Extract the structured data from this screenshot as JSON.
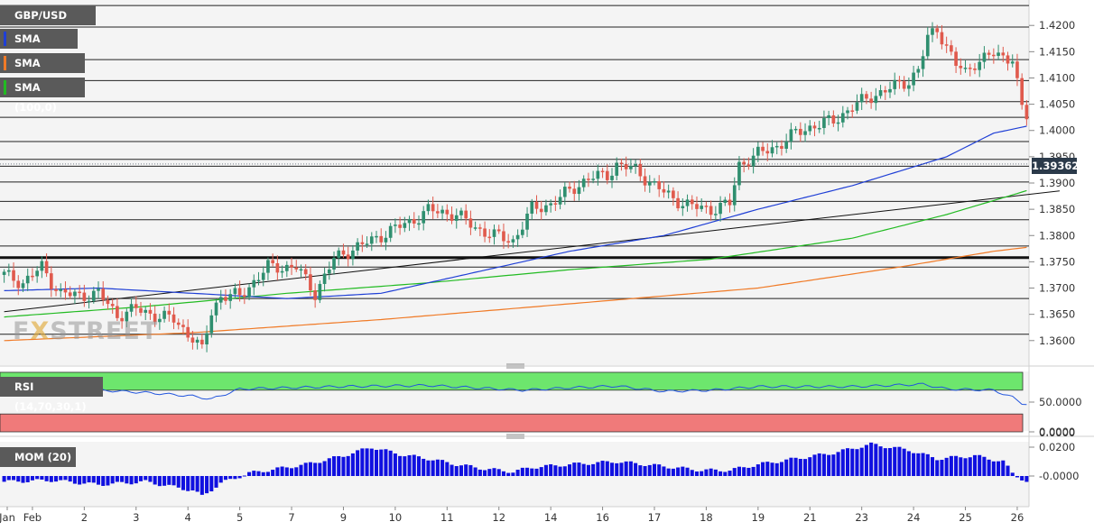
{
  "legend": {
    "symbol": "GBP/USD",
    "sma50": "SMA (50,0)",
    "sma200": "SMA (200,0)",
    "sma100": "SMA (100,0)",
    "rsi": "RSI (14,70,30,1)",
    "mom": "MOM (20)"
  },
  "watermark": {
    "left": "F",
    "x": "X",
    "right": "STREET"
  },
  "colors": {
    "up": "#2f8f6f",
    "down": "#e05a4d",
    "sma50": "#1f3fd6",
    "sma200": "#f07a26",
    "sma100": "#22bb22",
    "rsi_line": "#2255dd",
    "rsi_overbought": "#6de66d",
    "rsi_oversold": "#f07a7a",
    "mom_bar": "#1010e0"
  },
  "chart_data": [
    {
      "type": "candlestick",
      "title": "GBP/USD",
      "y_ticks": [
        "1.4200",
        "1.4150",
        "1.4100",
        "1.4050",
        "1.4000",
        "1.3950",
        "1.3900",
        "1.3850",
        "1.3800",
        "1.3750",
        "1.3700",
        "1.3650",
        "1.3600"
      ],
      "ylim": [
        1.3555,
        1.4245
      ],
      "last_price": "1.39362",
      "last_price_value": 1.39362,
      "horizontal_levels": [
        1.4238,
        1.4197,
        1.4135,
        1.4095,
        1.4055,
        1.4025,
        1.3979,
        1.3945,
        1.3932,
        1.3902,
        1.3865,
        1.383,
        1.378,
        1.374,
        1.368,
        1.3612
      ],
      "key_level": 1.3758,
      "x_labels": [
        "Jan",
        "Feb",
        "2",
        "3",
        "4",
        "5",
        "7",
        "9",
        "10",
        "11",
        "12",
        "14",
        "16",
        "17",
        "18",
        "19",
        "21",
        "23",
        "24",
        "25",
        "26"
      ],
      "x_label_index": [
        0,
        6,
        17,
        28,
        39,
        50,
        61,
        72,
        83,
        94,
        105,
        116,
        127,
        138,
        149,
        160,
        171,
        182,
        193,
        204,
        215
      ],
      "num_candles": 218,
      "ohlc_anchors": [
        [
          0,
          1.3725
        ],
        [
          4,
          1.371
        ],
        [
          8,
          1.374
        ],
        [
          10,
          1.3712
        ],
        [
          12,
          1.369
        ],
        [
          16,
          1.3685
        ],
        [
          20,
          1.369
        ],
        [
          24,
          1.3648
        ],
        [
          28,
          1.366
        ],
        [
          32,
          1.3648
        ],
        [
          36,
          1.364
        ],
        [
          40,
          1.3605
        ],
        [
          42,
          1.358
        ],
        [
          44,
          1.3655
        ],
        [
          46,
          1.3685
        ],
        [
          50,
          1.3685
        ],
        [
          56,
          1.374
        ],
        [
          62,
          1.374
        ],
        [
          66,
          1.369
        ],
        [
          70,
          1.3755
        ],
        [
          74,
          1.3775
        ],
        [
          78,
          1.379
        ],
        [
          82,
          1.381
        ],
        [
          86,
          1.3825
        ],
        [
          90,
          1.3848
        ],
        [
          96,
          1.384
        ],
        [
          100,
          1.3815
        ],
        [
          104,
          1.38
        ],
        [
          108,
          1.379
        ],
        [
          112,
          1.385
        ],
        [
          116,
          1.386
        ],
        [
          120,
          1.3885
        ],
        [
          124,
          1.391
        ],
        [
          128,
          1.3915
        ],
        [
          130,
          1.3935
        ],
        [
          134,
          1.3925
        ],
        [
          138,
          1.3895
        ],
        [
          142,
          1.387
        ],
        [
          146,
          1.3855
        ],
        [
          150,
          1.385
        ],
        [
          154,
          1.386
        ],
        [
          156,
          1.3935
        ],
        [
          160,
          1.3955
        ],
        [
          164,
          1.397
        ],
        [
          168,
          1.3995
        ],
        [
          172,
          1.401
        ],
        [
          176,
          1.4018
        ],
        [
          180,
          1.4045
        ],
        [
          184,
          1.4065
        ],
        [
          188,
          1.408
        ],
        [
          192,
          1.4095
        ],
        [
          194,
          1.4115
        ],
        [
          196,
          1.4175
        ],
        [
          198,
          1.4195
        ],
        [
          200,
          1.416
        ],
        [
          202,
          1.4125
        ],
        [
          204,
          1.411
        ],
        [
          206,
          1.413
        ],
        [
          210,
          1.4145
        ],
        [
          212,
          1.414
        ],
        [
          214,
          1.414
        ],
        [
          216,
          1.404
        ],
        [
          218,
          1.401
        ],
        [
          220,
          1.3975
        ],
        [
          222,
          1.3925
        ],
        [
          224,
          1.3936
        ]
      ],
      "sma50_anchors": [
        [
          0,
          1.3695
        ],
        [
          20,
          1.37
        ],
        [
          40,
          1.369
        ],
        [
          60,
          1.368
        ],
        [
          80,
          1.369
        ],
        [
          100,
          1.373
        ],
        [
          120,
          1.377
        ],
        [
          140,
          1.38
        ],
        [
          160,
          1.385
        ],
        [
          180,
          1.3895
        ],
        [
          200,
          1.395
        ],
        [
          210,
          1.3995
        ],
        [
          218,
          1.401
        ],
        [
          224,
          1.401
        ]
      ],
      "sma100_anchors": [
        [
          0,
          1.3645
        ],
        [
          30,
          1.3665
        ],
        [
          60,
          1.369
        ],
        [
          90,
          1.371
        ],
        [
          120,
          1.3735
        ],
        [
          150,
          1.3755
        ],
        [
          180,
          1.3795
        ],
        [
          200,
          1.384
        ],
        [
          215,
          1.388
        ],
        [
          224,
          1.3905
        ]
      ],
      "sma200_anchors": [
        [
          0,
          1.36
        ],
        [
          40,
          1.3615
        ],
        [
          80,
          1.364
        ],
        [
          120,
          1.367
        ],
        [
          160,
          1.37
        ],
        [
          190,
          1.374
        ],
        [
          210,
          1.377
        ],
        [
          224,
          1.3785
        ]
      ],
      "trendline": {
        "from": [
          0,
          1.3655
        ],
        "to": [
          224,
          1.3885
        ]
      }
    },
    {
      "type": "line",
      "title": "RSI (14,70,30,1)",
      "y_ticks": [
        "50.0000",
        "0.0000"
      ],
      "anchors": [
        [
          0,
          72
        ],
        [
          10,
          66
        ],
        [
          20,
          70
        ],
        [
          30,
          66
        ],
        [
          40,
          60
        ],
        [
          44,
          55
        ],
        [
          50,
          72
        ],
        [
          70,
          76
        ],
        [
          90,
          78
        ],
        [
          110,
          70
        ],
        [
          120,
          74
        ],
        [
          130,
          77
        ],
        [
          140,
          68
        ],
        [
          150,
          70
        ],
        [
          160,
          76
        ],
        [
          180,
          76
        ],
        [
          195,
          80
        ],
        [
          200,
          72
        ],
        [
          210,
          70
        ],
        [
          214,
          58
        ],
        [
          216,
          48
        ],
        [
          220,
          44
        ],
        [
          224,
          50
        ]
      ]
    },
    {
      "type": "bar",
      "title": "MOM (20)",
      "y_ticks": [
        "0.0200",
        "0.0000",
        "-0.0000"
      ],
      "anchors": [
        [
          0,
          -0.004
        ],
        [
          10,
          -0.003
        ],
        [
          20,
          -0.006
        ],
        [
          30,
          -0.004
        ],
        [
          40,
          -0.01
        ],
        [
          42,
          -0.014
        ],
        [
          46,
          -0.005
        ],
        [
          52,
          0.002
        ],
        [
          58,
          0.005
        ],
        [
          64,
          0.008
        ],
        [
          72,
          0.014
        ],
        [
          78,
          0.02
        ],
        [
          84,
          0.015
        ],
        [
          90,
          0.012
        ],
        [
          96,
          0.008
        ],
        [
          102,
          0.005
        ],
        [
          108,
          0.003
        ],
        [
          112,
          0.006
        ],
        [
          120,
          0.008
        ],
        [
          130,
          0.01
        ],
        [
          136,
          0.008
        ],
        [
          142,
          0.006
        ],
        [
          148,
          0.004
        ],
        [
          154,
          0.004
        ],
        [
          160,
          0.008
        ],
        [
          168,
          0.012
        ],
        [
          176,
          0.016
        ],
        [
          184,
          0.022
        ],
        [
          192,
          0.018
        ],
        [
          198,
          0.012
        ],
        [
          206,
          0.014
        ],
        [
          212,
          0.01
        ],
        [
          214,
          0.002
        ],
        [
          218,
          -0.006
        ],
        [
          222,
          -0.014
        ],
        [
          224,
          -0.015
        ]
      ]
    }
  ]
}
